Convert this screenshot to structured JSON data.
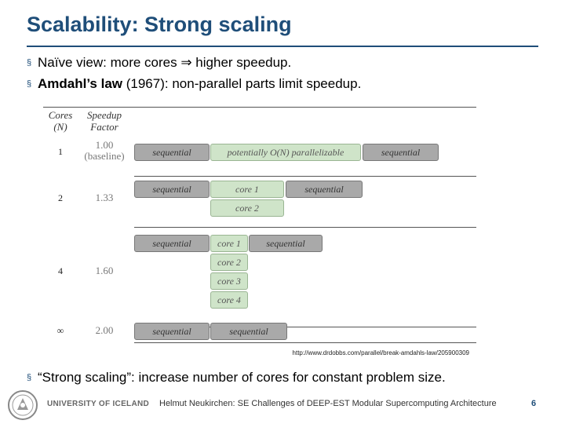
{
  "slide": {
    "title": "Scalability: Strong scaling",
    "bullets": {
      "b1": "Naïve view: more cores ⇒ higher speedup.",
      "b2_bold": "Amdahl’s law",
      "b2_rest": " (1967): non-parallel parts limit speedup.",
      "b3": "“Strong scaling”: increase number of cores for constant problem size."
    },
    "bullet_mark": "§"
  },
  "diagram": {
    "header": {
      "cores": "Cores\n(N)",
      "speedup": "Speedup\nFactor"
    },
    "rows": [
      {
        "cores": "1",
        "factor": "1.00\n(baseline)",
        "lanes": [
          [
            {
              "label": "sequential",
              "kind": "seq"
            },
            {
              "label": "potentially O(N) parallelizable",
              "kind": "par"
            },
            {
              "label": "sequential",
              "kind": "seq"
            }
          ]
        ]
      },
      {
        "cores": "2",
        "factor": "1.33",
        "lanes": [
          [
            {
              "label": "sequential",
              "kind": "seq"
            },
            {
              "label": "core 1",
              "kind": "par"
            },
            {
              "label": "sequential",
              "kind": "seq"
            }
          ],
          [
            {
              "label": "core 2",
              "kind": "par"
            }
          ]
        ]
      },
      {
        "cores": "4",
        "factor": "1.60",
        "lanes": [
          [
            {
              "label": "sequential",
              "kind": "seq"
            },
            {
              "label": "core 1",
              "kind": "par"
            },
            {
              "label": "sequential",
              "kind": "seq"
            }
          ],
          [
            {
              "label": "core 2",
              "kind": "par"
            }
          ],
          [
            {
              "label": "core 3",
              "kind": "par"
            }
          ],
          [
            {
              "label": "core 4",
              "kind": "par"
            }
          ]
        ]
      },
      {
        "cores": "∞",
        "factor": "2.00",
        "lanes": [
          [
            {
              "label": "sequential",
              "kind": "seq"
            },
            {
              "label": "sequential",
              "kind": "seq"
            }
          ]
        ]
      }
    ],
    "source_url": "http://www.drdobbs.com/parallel/break-amdahls-law/205900309",
    "colors": {
      "sequential": "#a9a9a9",
      "parallel": "#cfe4c9"
    }
  },
  "footer": {
    "university": "UNIVERSITY OF ICELAND",
    "text": "Helmut Neukirchen: SE Challenges of DEEP-EST Modular Supercomputing Architecture",
    "page": "6"
  }
}
